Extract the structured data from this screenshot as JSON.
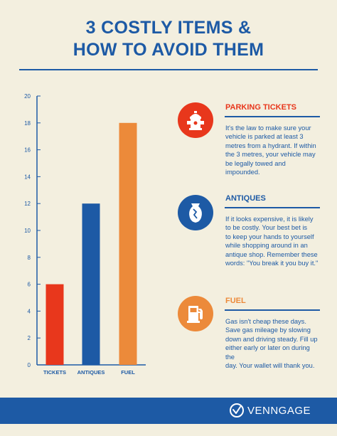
{
  "title": {
    "line1": "3 COSTLY ITEMS &",
    "line2": "HOW TO AVOID THEM"
  },
  "colors": {
    "blue": "#1d5aa5",
    "red": "#e8371c",
    "orange": "#ec8a3a",
    "background": "#f3efdf"
  },
  "chart_data": {
    "type": "bar",
    "categories": [
      "TICKETS",
      "ANTIQUES",
      "FUEL"
    ],
    "values": [
      6,
      12,
      18
    ],
    "bar_colors": [
      "#e8371c",
      "#1d5aa5",
      "#ec8a3a"
    ],
    "ylim": [
      0,
      20
    ],
    "yticks": [
      0,
      2,
      4,
      6,
      8,
      10,
      12,
      14,
      16,
      18,
      20
    ],
    "title": "",
    "xlabel": "",
    "ylabel": "",
    "grid": false,
    "legend": "none"
  },
  "items": [
    {
      "title": "PARKING TICKETS",
      "icon": "fire-hydrant-icon",
      "color": "#e8371c",
      "lines": [
        "It's the law to make sure your",
        "vehicle is parked at least 3",
        "metres from a hydrant. If within",
        "the 3 metres, your vehicle may",
        "be legally towed and impounded."
      ]
    },
    {
      "title": "ANTIQUES",
      "icon": "broken-vase-icon",
      "color": "#1d5aa5",
      "lines": [
        "If it looks expensive, it is likely",
        "to be costly. Your best bet is",
        "to keep your hands to yourself",
        "while shopping around in an",
        "antique shop. Remember these",
        "words: \"You break it you buy it.\""
      ]
    },
    {
      "title": "FUEL",
      "icon": "fuel-pump-icon",
      "color": "#ec8a3a",
      "lines": [
        "Gas isn't cheap these days.",
        "Save gas mileage by slowing",
        "down and driving steady.  Fill up",
        "either early or later on during the",
        "day. Your wallet will thank you."
      ]
    }
  ],
  "footer": {
    "brand": "VENNGAGE",
    "logo_icon": "venngage-logo-icon"
  }
}
